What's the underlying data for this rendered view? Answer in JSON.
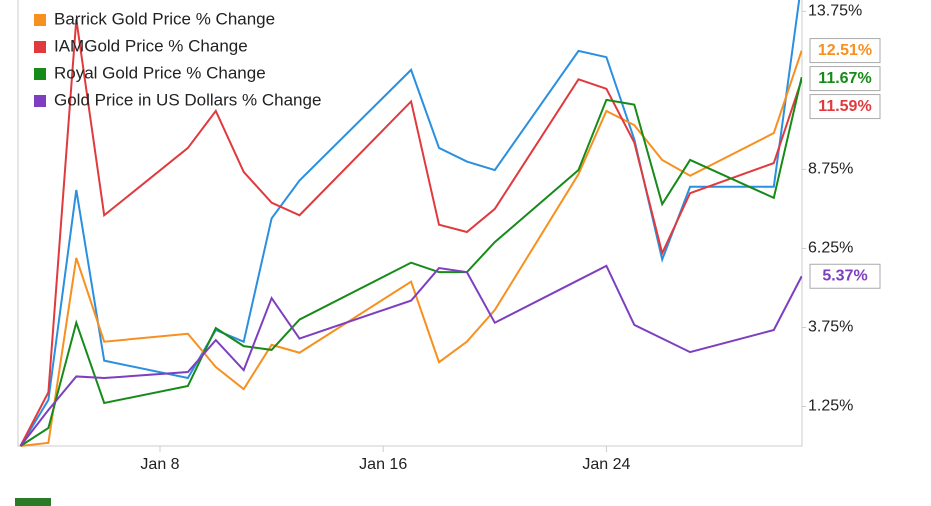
{
  "chart_data": {
    "type": "line",
    "x": [
      "Jan 3",
      "Jan 4",
      "Jan 5",
      "Jan 6",
      "Jan 9",
      "Jan 10",
      "Jan 11",
      "Jan 12",
      "Jan 13",
      "Jan 17",
      "Jan 18",
      "Jan 19",
      "Jan 20",
      "Jan 23",
      "Jan 24",
      "Jan 25",
      "Jan 26",
      "Jan 27",
      "Jan 30",
      "Jan 31"
    ],
    "xticks": [
      "Jan 8",
      "Jan 16",
      "Jan 24"
    ],
    "ylim": [
      0,
      14.11
    ],
    "yticks": [
      {
        "value": 1.25,
        "label": "1.25%"
      },
      {
        "value": 3.75,
        "label": "3.75%"
      },
      {
        "value": 6.25,
        "label": "6.25%"
      },
      {
        "value": 8.75,
        "label": "8.75%"
      },
      {
        "value": 13.75,
        "label": "13.75%"
      }
    ],
    "series": [
      {
        "color": "#2b8fe0",
        "values": [
          0,
          1.46,
          8.1,
          2.7,
          2.15,
          3.67,
          3.3,
          7.2,
          8.4,
          11.9,
          9.43,
          9.0,
          8.73,
          12.5,
          12.3,
          9.7,
          5.9,
          8.2,
          8.2,
          14.7
        ]
      },
      {
        "name": "Barrick Gold Price % Change",
        "color": "#f7901e",
        "values": [
          0,
          0.1,
          5.95,
          3.3,
          3.55,
          2.5,
          1.8,
          3.2,
          2.95,
          5.2,
          2.65,
          3.3,
          4.3,
          8.6,
          10.6,
          10.15,
          9.05,
          8.55,
          9.9,
          12.51
        ],
        "value_labels": [
          null,
          null,
          null,
          null,
          null,
          null,
          null,
          null,
          null,
          null,
          null,
          null,
          null,
          null,
          null,
          null,
          null,
          null,
          null,
          "12.51%"
        ]
      },
      {
        "name": "IAMGold Price % Change",
        "color": "#e03a3e",
        "values": [
          0,
          1.7,
          13.5,
          7.3,
          9.43,
          10.6,
          8.67,
          7.7,
          7.3,
          10.9,
          7.0,
          6.77,
          7.5,
          11.6,
          11.3,
          9.6,
          6.1,
          8.0,
          8.95,
          11.59
        ],
        "value_labels": [
          null,
          null,
          null,
          null,
          null,
          null,
          null,
          null,
          null,
          null,
          null,
          null,
          null,
          null,
          null,
          null,
          null,
          null,
          null,
          "11.59%"
        ]
      },
      {
        "name": "Royal Gold Price % Change",
        "color": "#178b1a",
        "values": [
          0,
          0.57,
          3.9,
          1.36,
          1.9,
          3.73,
          3.16,
          3.04,
          4.0,
          5.8,
          5.5,
          5.5,
          6.45,
          8.73,
          10.95,
          10.8,
          7.65,
          9.05,
          7.85,
          11.67
        ],
        "value_labels": [
          null,
          null,
          null,
          null,
          null,
          null,
          null,
          null,
          null,
          null,
          null,
          null,
          null,
          null,
          null,
          null,
          null,
          null,
          null,
          "11.67%"
        ]
      },
      {
        "name": "Gold Price in US Dollars % Change",
        "color": "#7d3fc0",
        "values": [
          0,
          1.14,
          2.2,
          2.15,
          2.34,
          3.35,
          2.4,
          4.68,
          3.4,
          4.6,
          5.63,
          5.5,
          3.9,
          5.25,
          5.7,
          3.83,
          3.4,
          2.97,
          3.67,
          5.37
        ],
        "value_labels": [
          null,
          null,
          null,
          null,
          null,
          null,
          null,
          null,
          null,
          null,
          null,
          null,
          null,
          null,
          null,
          null,
          null,
          null,
          null,
          "5.37%"
        ]
      }
    ]
  }
}
